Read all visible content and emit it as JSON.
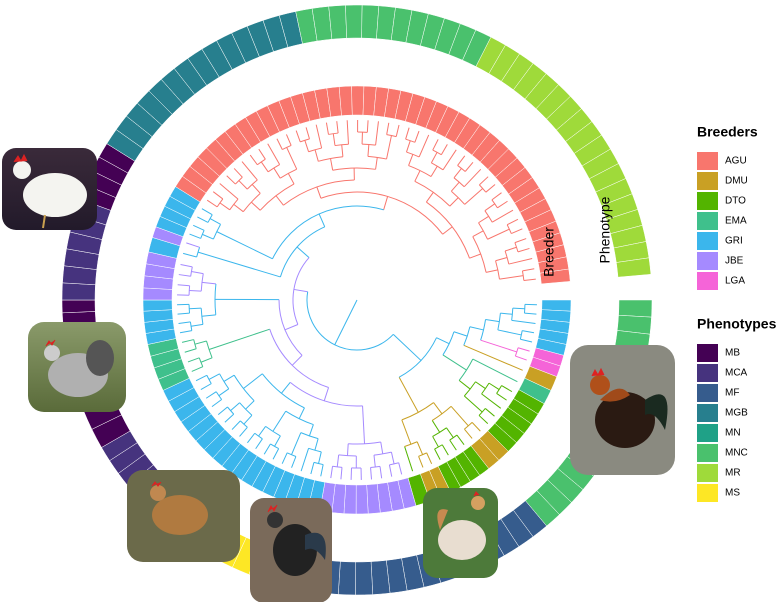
{
  "ring_labels": {
    "breeder": "Breeder",
    "phenotype": "Phenotype"
  },
  "legends": [
    {
      "title": "Breeders",
      "items": [
        {
          "label": "AGU",
          "color": "#f8766d"
        },
        {
          "label": "DMU",
          "color": "#c9a024"
        },
        {
          "label": "DTO",
          "color": "#53b400"
        },
        {
          "label": "EMA",
          "color": "#3fc08c"
        },
        {
          "label": "GRI",
          "color": "#3bb6ec"
        },
        {
          "label": "JBE",
          "color": "#a58aff"
        },
        {
          "label": "LGA",
          "color": "#f564d8"
        }
      ]
    },
    {
      "title": "Phenotypes",
      "items": [
        {
          "label": "MB",
          "color": "#440154"
        },
        {
          "label": "MCA",
          "color": "#46337e"
        },
        {
          "label": "MF",
          "color": "#365c8d"
        },
        {
          "label": "MGB",
          "color": "#277f8e"
        },
        {
          "label": "MN",
          "color": "#1fa187"
        },
        {
          "label": "MNC",
          "color": "#4ac16d"
        },
        {
          "label": "MR",
          "color": "#9fda3a"
        },
        {
          "label": "MS",
          "color": "#fde725"
        }
      ]
    }
  ]
}
